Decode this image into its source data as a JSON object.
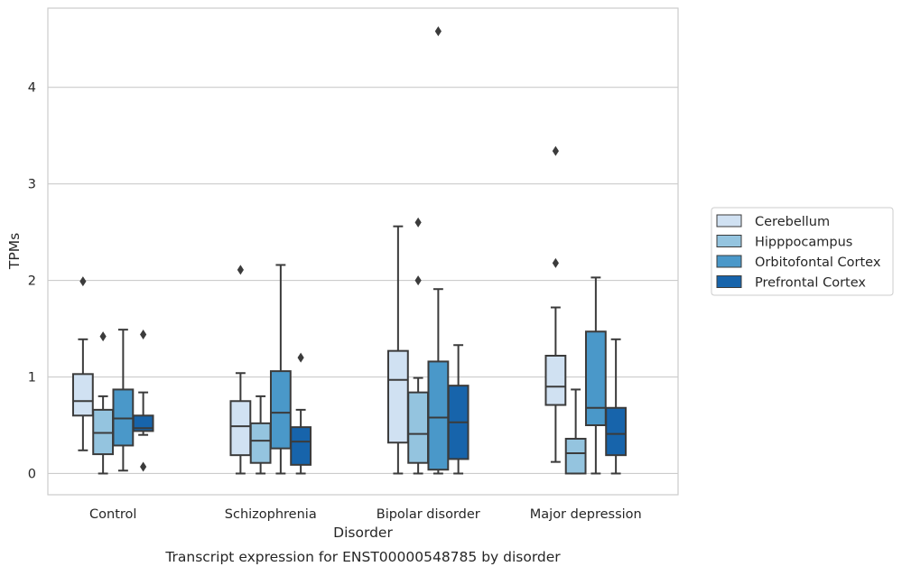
{
  "chart_data": {
    "type": "box",
    "title": "Transcript expression for ENST00000548785 by disorder",
    "xlabel": "Disorder",
    "ylabel": "TPMs",
    "ylim": [
      -0.22,
      4.82
    ],
    "yticks": [
      0,
      1,
      2,
      3,
      4
    ],
    "grid": "horizontal",
    "legend_position": "outside-right",
    "categories": [
      "Control",
      "Schizophrenia",
      "Bipolar disorder",
      "Major depression"
    ],
    "series": [
      {
        "name": "Cerebellum",
        "color": "#d0e1f2",
        "boxes": [
          {
            "whislo": 0.24,
            "q1": 0.6,
            "med": 0.75,
            "q3": 1.03,
            "whishi": 1.39,
            "fliers": [
              1.99
            ]
          },
          {
            "whislo": 0.0,
            "q1": 0.19,
            "med": 0.49,
            "q3": 0.75,
            "whishi": 1.04,
            "fliers": [
              2.11
            ]
          },
          {
            "whislo": 0.0,
            "q1": 0.32,
            "med": 0.97,
            "q3": 1.27,
            "whishi": 2.56,
            "fliers": []
          },
          {
            "whislo": 0.12,
            "q1": 0.71,
            "med": 0.9,
            "q3": 1.22,
            "whishi": 1.72,
            "fliers": [
              2.18,
              3.34
            ]
          }
        ]
      },
      {
        "name": "Hipppocampus",
        "color": "#94c4df",
        "boxes": [
          {
            "whislo": 0.0,
            "q1": 0.2,
            "med": 0.42,
            "q3": 0.66,
            "whishi": 0.8,
            "fliers": [
              1.42
            ]
          },
          {
            "whislo": 0.0,
            "q1": 0.11,
            "med": 0.34,
            "q3": 0.52,
            "whishi": 0.8,
            "fliers": []
          },
          {
            "whislo": 0.0,
            "q1": 0.11,
            "med": 0.41,
            "q3": 0.84,
            "whishi": 0.99,
            "fliers": [
              2.0,
              2.6
            ]
          },
          {
            "whislo": 0.0,
            "q1": 0.0,
            "med": 0.21,
            "q3": 0.36,
            "whishi": 0.87,
            "fliers": []
          }
        ]
      },
      {
        "name": "Orbitofontal Cortex",
        "color": "#4a98c9",
        "boxes": [
          {
            "whislo": 0.03,
            "q1": 0.29,
            "med": 0.57,
            "q3": 0.87,
            "whishi": 1.49,
            "fliers": []
          },
          {
            "whislo": 0.0,
            "q1": 0.26,
            "med": 0.63,
            "q3": 1.06,
            "whishi": 2.16,
            "fliers": []
          },
          {
            "whislo": 0.0,
            "q1": 0.04,
            "med": 0.58,
            "q3": 1.16,
            "whishi": 1.91,
            "fliers": [
              4.58
            ]
          },
          {
            "whislo": 0.0,
            "q1": 0.5,
            "med": 0.68,
            "q3": 1.47,
            "whishi": 2.03,
            "fliers": []
          }
        ]
      },
      {
        "name": "Prefrontal Cortex",
        "color": "#1764ab",
        "boxes": [
          {
            "whislo": 0.4,
            "q1": 0.44,
            "med": 0.47,
            "q3": 0.6,
            "whishi": 0.84,
            "fliers": [
              0.07,
              1.44
            ]
          },
          {
            "whislo": 0.0,
            "q1": 0.09,
            "med": 0.33,
            "q3": 0.48,
            "whishi": 0.66,
            "fliers": [
              1.2
            ]
          },
          {
            "whislo": 0.0,
            "q1": 0.15,
            "med": 0.53,
            "q3": 0.91,
            "whishi": 1.33,
            "fliers": []
          },
          {
            "whislo": 0.0,
            "q1": 0.19,
            "med": 0.41,
            "q3": 0.68,
            "whishi": 1.39,
            "fliers": []
          }
        ]
      }
    ]
  },
  "colors": {
    "grid": "#cccccc",
    "axes_edge": "#cccccc",
    "box_edge": "#3b3b3b",
    "text": "#262626"
  }
}
